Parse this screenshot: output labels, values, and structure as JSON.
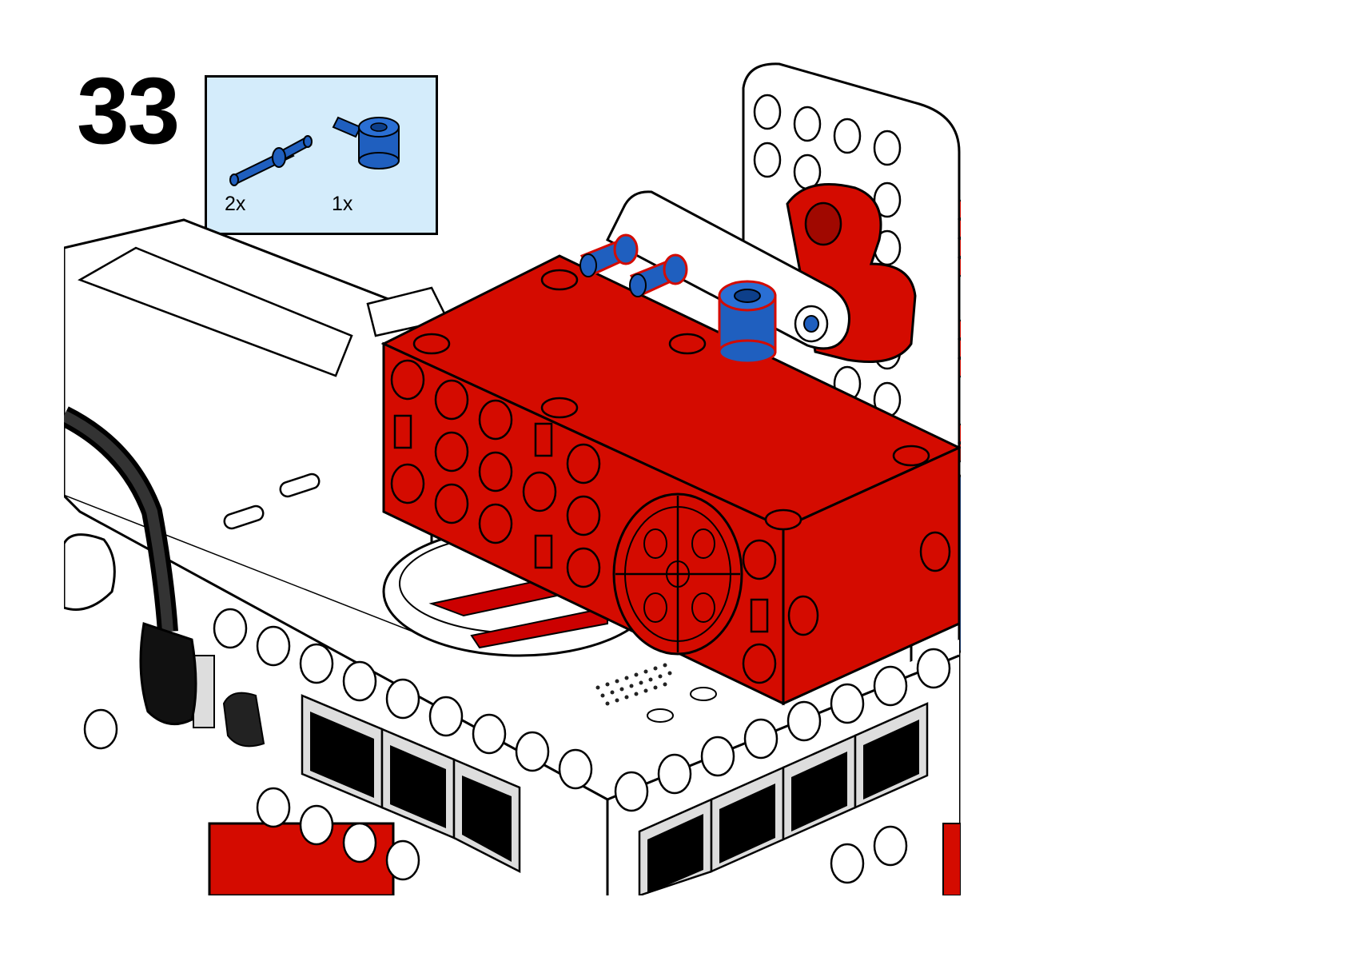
{
  "step": {
    "number": "33"
  },
  "parts": [
    {
      "name": "axle-pin-with-friction",
      "quantity": "2x",
      "color": "#1f5fbf"
    },
    {
      "name": "axle-and-pin-connector-perpendicular",
      "quantity": "1x",
      "color": "#1f5fbf"
    }
  ],
  "colors": {
    "parts_box_bg": "#d4ecfb",
    "motor_red": "#d40b00",
    "part_blue": "#1f5fbf",
    "hub_white": "#ffffff",
    "cable_black": "#111111"
  }
}
